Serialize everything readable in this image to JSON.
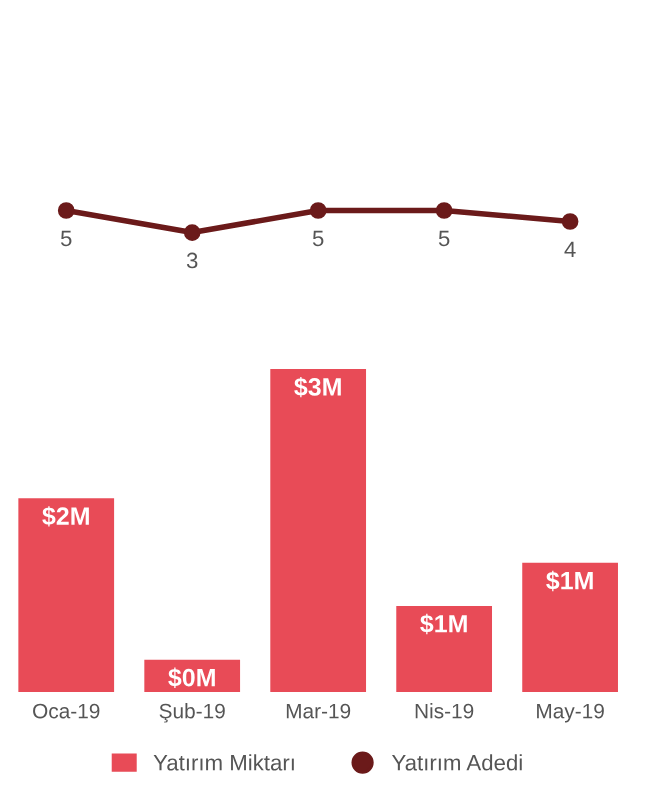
{
  "chart_data": [
    {
      "type": "line",
      "categories": [
        null,
        null,
        null,
        null,
        null
      ],
      "data_labels": true,
      "marker": "circle",
      "series": [
        {
          "name": "Yatırım Adedi",
          "color": "#6b1a1a",
          "values": [
            5,
            3,
            5,
            5,
            4
          ]
        }
      ]
    },
    {
      "type": "bar",
      "categories": [
        "Oca-19",
        "Şub-19",
        "Mar-19",
        "Nis-19",
        "May-19"
      ],
      "legend": "bottom",
      "series": [
        {
          "name": "Yatırım Miktarı",
          "color": "#e84b57",
          "values": [
            1.8,
            0.3,
            3,
            0.8,
            1.2
          ],
          "value_labels": [
            "$2M",
            "$0M",
            "$3M",
            "$1M",
            "$1M"
          ]
        }
      ]
    }
  ]
}
